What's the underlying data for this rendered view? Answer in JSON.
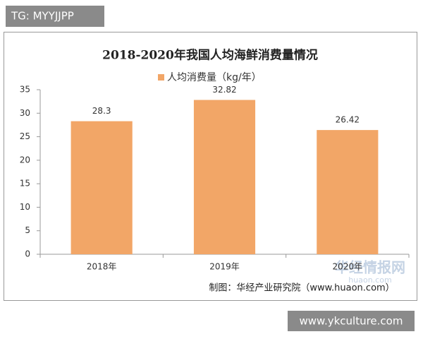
{
  "tag": "TG: MYYJJPP",
  "site": "www.ykculture.com",
  "chart_data": {
    "type": "bar",
    "title": "2018-2020年我国人均海鲜消费量情况",
    "categories": [
      "2018年",
      "2019年",
      "2020年"
    ],
    "series": [
      {
        "name": "人均消费量（kg/年）",
        "color": "#F2A667",
        "values": [
          28.3,
          32.82,
          26.42
        ]
      }
    ],
    "ylim": [
      0,
      35
    ],
    "yticks": [
      0,
      5,
      10,
      15,
      20,
      25,
      30,
      35
    ],
    "source": "制图：华经产业研究院（www.huaon.com）",
    "watermark": "华经情报网",
    "watermark_url": "huaon.com"
  }
}
